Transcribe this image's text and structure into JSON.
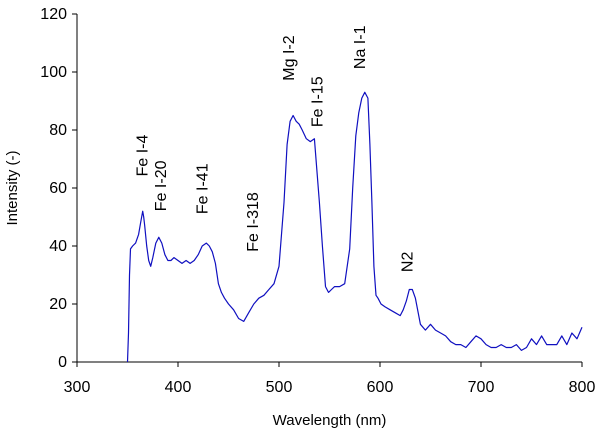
{
  "chart_data": {
    "type": "line",
    "title": "",
    "xlabel": "Wavelength (nm)",
    "ylabel": "Intensity (-)",
    "xlim": [
      300,
      800
    ],
    "ylim": [
      0,
      120
    ],
    "xticks": [
      300,
      400,
      500,
      600,
      700,
      800
    ],
    "yticks": [
      0,
      20,
      40,
      60,
      80,
      100,
      120
    ],
    "grid": false,
    "legend": "none",
    "line_color": "#1010c0",
    "series": [
      {
        "x": [
          350,
          351,
          352,
          353,
          355,
          358,
          361,
          363,
          365,
          366,
          367,
          369,
          371,
          373,
          375,
          378,
          381,
          384,
          387,
          390,
          393,
          396,
          400,
          404,
          408,
          412,
          416,
          420,
          424,
          428,
          431,
          434,
          437,
          440,
          443,
          446,
          450,
          455,
          460,
          465,
          470,
          475,
          480,
          485,
          490,
          495,
          500,
          505,
          508,
          511,
          514,
          517,
          520,
          523,
          527,
          531,
          535,
          540,
          543,
          546,
          549,
          552,
          555,
          560,
          565,
          570,
          573,
          576,
          579,
          582,
          585,
          588,
          590,
          592,
          594,
          596,
          598,
          601,
          605,
          610,
          615,
          620,
          623,
          626,
          629,
          632,
          635,
          640,
          645,
          650,
          655,
          660,
          665,
          670,
          675,
          680,
          685,
          690,
          695,
          700,
          705,
          710,
          715,
          720,
          725,
          730,
          735,
          740,
          745,
          750,
          755,
          760,
          765,
          770,
          775,
          780,
          785,
          790,
          795,
          800
        ],
        "y": [
          0,
          10,
          30,
          39,
          40,
          41,
          44,
          48,
          52,
          50,
          47,
          40,
          35,
          33,
          36,
          41,
          43,
          41,
          37,
          35,
          35,
          36,
          35,
          34,
          35,
          34,
          35,
          37,
          40,
          41,
          40,
          38,
          34,
          27,
          24,
          22,
          20,
          18,
          15,
          14,
          17,
          20,
          22,
          23,
          25,
          27,
          33,
          55,
          75,
          83,
          85,
          83,
          82,
          80,
          77,
          76,
          77,
          55,
          40,
          26,
          24,
          25,
          26,
          26,
          27,
          39,
          60,
          78,
          86,
          91,
          93,
          91,
          75,
          55,
          33,
          23,
          22,
          20,
          19,
          18,
          17,
          16,
          18,
          21,
          25,
          25,
          22,
          13,
          11,
          13,
          11,
          10,
          9,
          7,
          6,
          6,
          5,
          7,
          9,
          8,
          6,
          5,
          5,
          6,
          5,
          5,
          6,
          4,
          5,
          8,
          6,
          9,
          6,
          6,
          6,
          9,
          6,
          10,
          8,
          12
        ]
      }
    ],
    "annotations": [
      {
        "text": "Fe I-4",
        "x": 370,
        "y": 64
      },
      {
        "text": "Fe I-20",
        "x": 388,
        "y": 52
      },
      {
        "text": "Fe I-41",
        "x": 429,
        "y": 51
      },
      {
        "text": "Fe I-318",
        "x": 479,
        "y": 38
      },
      {
        "text": "Mg I-2",
        "x": 515,
        "y": 97
      },
      {
        "text": "Fe I-15",
        "x": 543,
        "y": 81
      },
      {
        "text": "Na I-1",
        "x": 585,
        "y": 101
      },
      {
        "text": "N2",
        "x": 632,
        "y": 31
      }
    ]
  }
}
